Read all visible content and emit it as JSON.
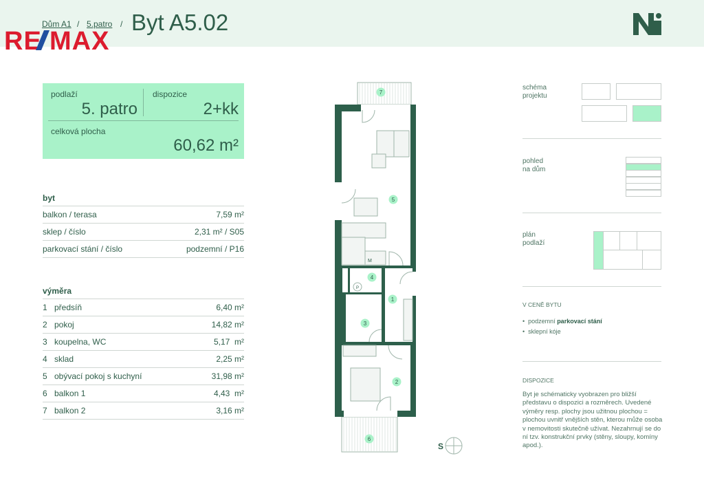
{
  "header": {
    "breadcrumb": [
      "Dům A1",
      "5.patro"
    ],
    "separator": "/",
    "title": "Byt A5.02",
    "brand_logo": "RE/MAX",
    "project_logo": "N-mark"
  },
  "summary": {
    "floor_label": "podlaží",
    "floor_value": "5. patro",
    "layout_label": "dispozice",
    "layout_value": "2+kk",
    "area_label": "celková plocha",
    "area_value": "60,62 m²"
  },
  "byt": {
    "title": "byt",
    "rows": [
      {
        "label": "balkon / terasa",
        "value": "7,59 m²"
      },
      {
        "label": "sklep / číslo",
        "value": "2,31 m² / S05"
      },
      {
        "label": "parkovací stání / číslo",
        "value": "podzemní / P16"
      }
    ]
  },
  "vymera": {
    "title": "výměra",
    "rows": [
      {
        "n": "1",
        "label": "předsíň",
        "value": "6,40 m²"
      },
      {
        "n": "2",
        "label": "pokoj",
        "value": "14,82 m²"
      },
      {
        "n": "3",
        "label": "koupelna, WC",
        "value": "5,17  m²"
      },
      {
        "n": "4",
        "label": "sklad",
        "value": "2,25 m²"
      },
      {
        "n": "5",
        "label": "obývací pokoj s kuchyní",
        "value": "31,98 m²"
      },
      {
        "n": "6",
        "label": "balkon 1",
        "value": "4,43  m²"
      },
      {
        "n": "7",
        "label": "balkon 2",
        "value": "3,16 m²"
      }
    ]
  },
  "plan": {
    "room_numbers": [
      "1",
      "2",
      "3",
      "4",
      "5",
      "6",
      "7"
    ],
    "compass": "S",
    "appliance_labels": [
      "M",
      "P"
    ]
  },
  "sidebar": {
    "schema_label": "schéma\nprojektu",
    "view_label": "pohled\nna dům",
    "floor_plan_label": "plán\npodlaží",
    "price_title": "V CENĚ BYTU",
    "price_items": [
      {
        "prefix": "podzemní ",
        "bold": "parkovací stání"
      },
      {
        "prefix": "sklepní kóje",
        "bold": ""
      }
    ],
    "disp_title": "DISPOZICE",
    "disp_text": "Byt je schématicky vyobrazen pro bližší představu o dispozici a rozměrech. Uvedené výměry resp. plochy jsou užitnou plochou = plochou uvnitř vnějších stěn, kterou může osoba v nemovitosti skutečně užívat. Nezahrnují se do ní tzv. konstrukční prvky (stěny, sloupy, komíny apod.)."
  },
  "colors": {
    "primary": "#2f5e4a",
    "accent": "#a9f2c9",
    "band": "#eaf5ee",
    "remax_red": "#dc1c2e",
    "remax_blue": "#1f4fa0"
  }
}
